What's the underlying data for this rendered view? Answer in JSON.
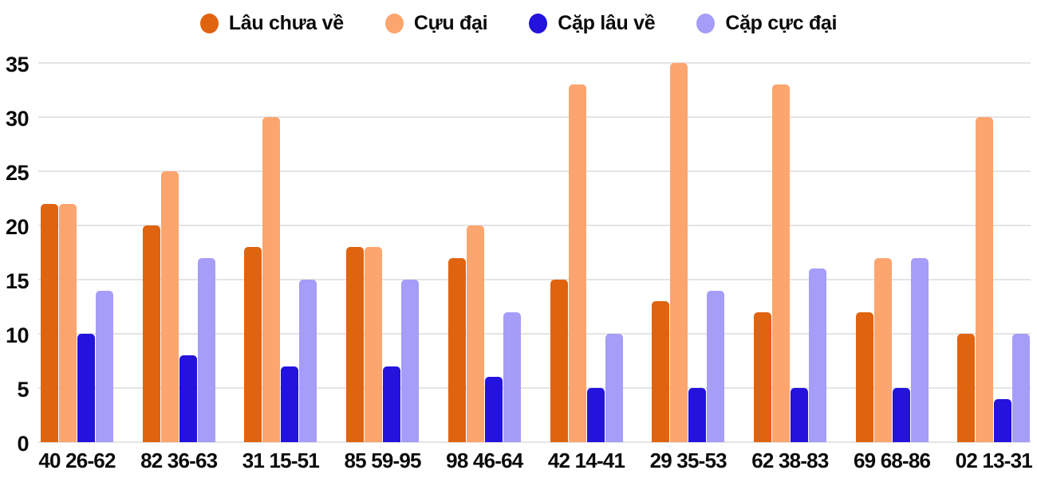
{
  "chart_data": {
    "type": "bar",
    "title": "",
    "xlabel": "",
    "ylabel": "",
    "categories": [
      "40 26-62",
      "82 36-63",
      "31 15-51",
      "85 59-95",
      "98 46-64",
      "42 14-41",
      "29 35-53",
      "62 38-83",
      "69 68-86",
      "02 13-31"
    ],
    "series": [
      {
        "name": "Lâu chưa về",
        "color": "#E06310",
        "values": [
          22,
          20,
          18,
          18,
          17,
          15,
          13,
          12,
          12,
          10
        ]
      },
      {
        "name": "Cựu đại",
        "color": "#FCA56E",
        "values": [
          22,
          25,
          30,
          18,
          20,
          33,
          35,
          33,
          17,
          30
        ]
      },
      {
        "name": "Cặp lâu về",
        "color": "#2412DD",
        "values": [
          10,
          8,
          7,
          7,
          6,
          5,
          5,
          5,
          5,
          4
        ]
      },
      {
        "name": "Cặp cực đại",
        "color": "#A59DF8",
        "values": [
          14,
          17,
          15,
          15,
          12,
          10,
          14,
          16,
          17,
          10
        ]
      }
    ],
    "ylim": [
      0,
      35
    ],
    "yticks": [
      0,
      5,
      10,
      15,
      20,
      25,
      30,
      35
    ],
    "grid": true,
    "legend_position": "top",
    "colors": {
      "grid": "#e4e4e4",
      "text": "#0a0a0a",
      "background": "#ffffff"
    }
  }
}
